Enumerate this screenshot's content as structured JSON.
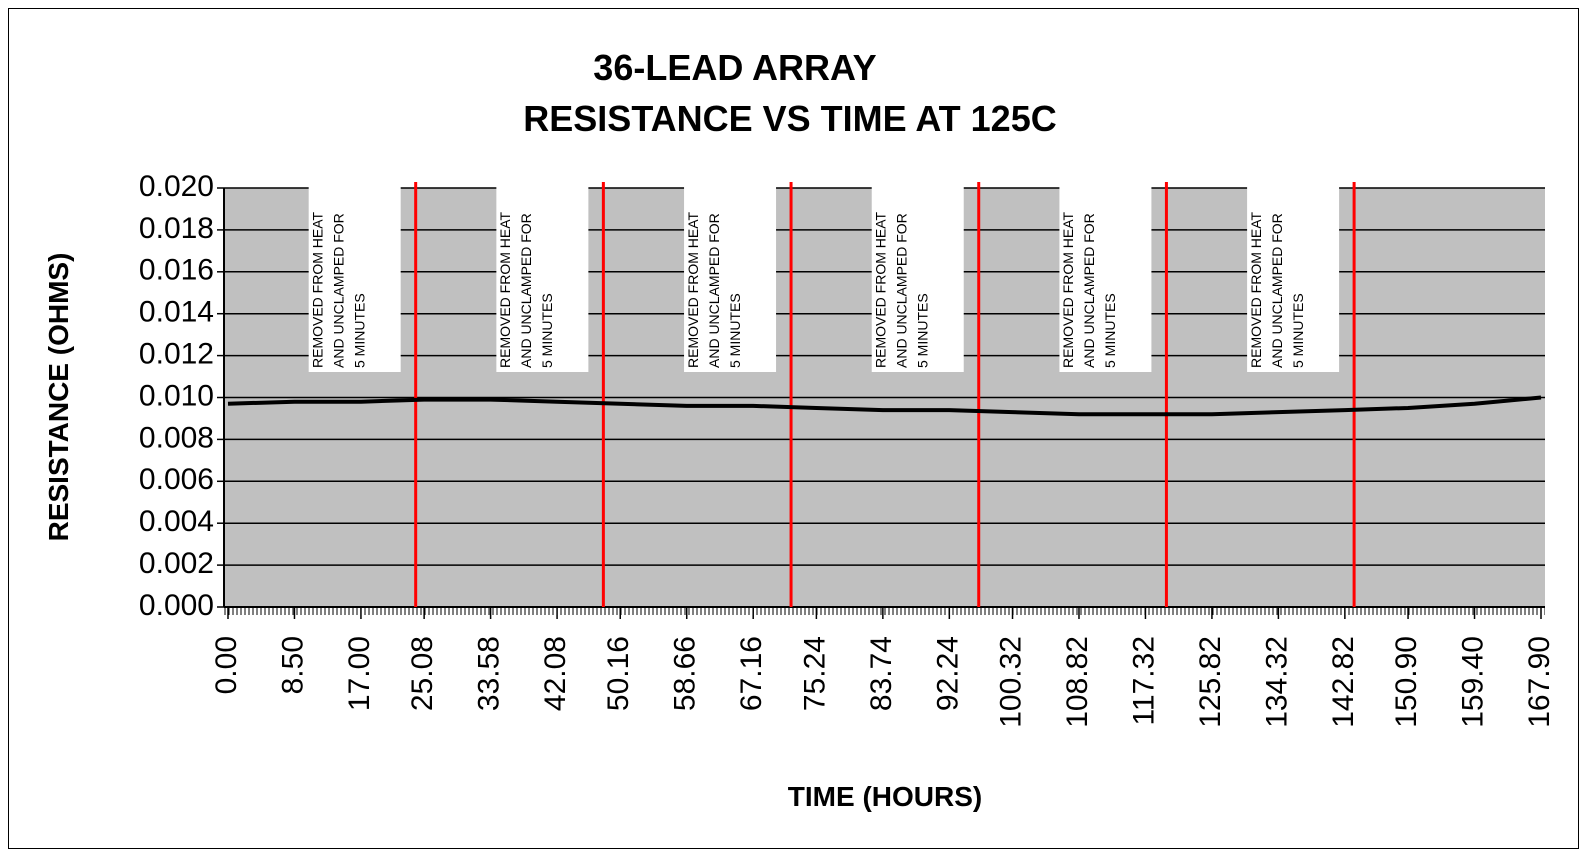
{
  "chart_data": {
    "type": "line",
    "title": [
      "36-LEAD ARRAY",
      "RESISTANCE VS TIME AT 125C"
    ],
    "x_label": "TIME (HOURS)",
    "y_label": "RESISTANCE (OHMS)",
    "x": [
      0,
      8.5,
      17,
      25.08,
      33.58,
      42.08,
      50.16,
      58.66,
      67.16,
      75.24,
      83.74,
      92.24,
      100.32,
      108.82,
      117.32,
      125.82,
      134.32,
      142.82,
      150.9,
      159.4,
      167.9
    ],
    "series": [
      {
        "name": "RESISTANCE",
        "color": "#000000",
        "values": [
          0.0097,
          0.0098,
          0.0098,
          0.0099,
          0.0099,
          0.0098,
          0.0097,
          0.0096,
          0.0096,
          0.0095,
          0.0094,
          0.0094,
          0.0093,
          0.0092,
          0.0092,
          0.0092,
          0.0093,
          0.0094,
          0.0095,
          0.0097,
          0.01
        ]
      }
    ],
    "xlim": [
      0,
      167.9
    ],
    "xticks": [
      {
        "value": 0,
        "label": "0.00"
      },
      {
        "value": 8.5,
        "label": "8.50"
      },
      {
        "value": 17,
        "label": "17.00"
      },
      {
        "value": 25.08,
        "label": "25.08"
      },
      {
        "value": 33.58,
        "label": "33.58"
      },
      {
        "value": 42.08,
        "label": "42.08"
      },
      {
        "value": 50.16,
        "label": "50.16"
      },
      {
        "value": 58.66,
        "label": "58.66"
      },
      {
        "value": 67.16,
        "label": "67.16"
      },
      {
        "value": 75.24,
        "label": "75.24"
      },
      {
        "value": 83.74,
        "label": "83.74"
      },
      {
        "value": 92.24,
        "label": "92.24"
      },
      {
        "value": 100.32,
        "label": "100.32"
      },
      {
        "value": 108.82,
        "label": "108.82"
      },
      {
        "value": 117.32,
        "label": "117.32"
      },
      {
        "value": 125.82,
        "label": "125.82"
      },
      {
        "value": 134.32,
        "label": "134.32"
      },
      {
        "value": 142.82,
        "label": "142.82"
      },
      {
        "value": 150.9,
        "label": "150.90"
      },
      {
        "value": 159.4,
        "label": "159.40"
      },
      {
        "value": 167.9,
        "label": "167.90"
      }
    ],
    "ylim": [
      0,
      0.02
    ],
    "yticks": [
      {
        "value": 0,
        "label": "0.000"
      },
      {
        "value": 0.002,
        "label": "0.002"
      },
      {
        "value": 0.004,
        "label": "0.004"
      },
      {
        "value": 0.006,
        "label": "0.006"
      },
      {
        "value": 0.008,
        "label": "0.008"
      },
      {
        "value": 0.01,
        "label": "0.010"
      },
      {
        "value": 0.012,
        "label": "0.012"
      },
      {
        "value": 0.014,
        "label": "0.014"
      },
      {
        "value": 0.016,
        "label": "0.016"
      },
      {
        "value": 0.018,
        "label": "0.018"
      },
      {
        "value": 0.02,
        "label": "0.020"
      }
    ],
    "grid": true,
    "plot_background": "#c0c0c0",
    "event_color": "#ff0000",
    "events": [
      {
        "x": 24,
        "lines": [
          "REMOVED FROM HEAT",
          "AND UNCLAMPED FOR",
          "5 MINUTES"
        ]
      },
      {
        "x": 48,
        "lines": [
          "REMOVED FROM HEAT",
          "AND UNCLAMPED FOR",
          "5 MINUTES"
        ]
      },
      {
        "x": 72,
        "lines": [
          "REMOVED FROM HEAT",
          "AND UNCLAMPED FOR",
          "5 MINUTES"
        ]
      },
      {
        "x": 96,
        "lines": [
          "REMOVED FROM HEAT",
          "AND UNCLAMPED FOR",
          "5 MINUTES"
        ]
      },
      {
        "x": 120,
        "lines": [
          "REMOVED FROM HEAT",
          "AND UNCLAMPED FOR",
          "5 MINUTES"
        ]
      },
      {
        "x": 144,
        "lines": [
          "REMOVED FROM HEAT",
          "AND UNCLAMPED FOR",
          "5 MINUTES"
        ]
      }
    ]
  }
}
